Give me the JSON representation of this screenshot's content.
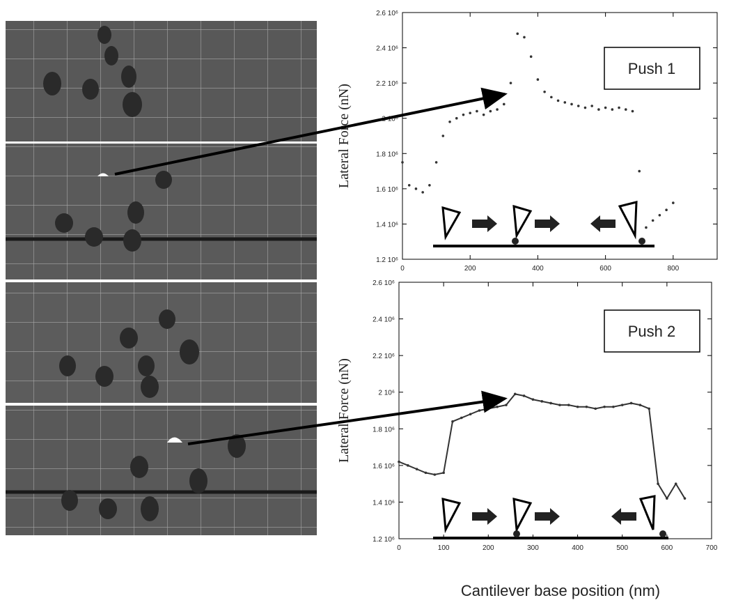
{
  "figure": {
    "xlabel": "Cantilever base position (nm)"
  },
  "chart_data": [
    {
      "type": "scatter",
      "ylabel": "Lateral Force (nN)",
      "annotation": "Push 1",
      "xlim": [
        0,
        930
      ],
      "xticks": [
        0,
        200,
        400,
        600,
        800
      ],
      "ylim": [
        1200000,
        2600000
      ],
      "yticks": [
        {
          "value": 1200000,
          "label": "1.2 10⁶"
        },
        {
          "value": 1400000,
          "label": "1.4 10⁶"
        },
        {
          "value": 1600000,
          "label": "1.6 10⁶"
        },
        {
          "value": 1800000,
          "label": "1.8 10⁶"
        },
        {
          "value": 2000000,
          "label": "2 10⁶"
        },
        {
          "value": 2200000,
          "label": "2.2 10⁶"
        },
        {
          "value": 2400000,
          "label": "2.4 10⁶"
        },
        {
          "value": 2600000,
          "label": "2.6 10⁶"
        }
      ],
      "series": [
        {
          "name": "Push 1",
          "color": "#333333",
          "x": [
            0,
            20,
            40,
            60,
            80,
            100,
            120,
            140,
            160,
            180,
            200,
            220,
            240,
            260,
            280,
            300,
            320,
            340,
            360,
            380,
            400,
            420,
            440,
            460,
            480,
            500,
            520,
            540,
            560,
            580,
            600,
            620,
            640,
            660,
            680,
            700,
            720,
            740,
            760,
            780,
            800
          ],
          "values": [
            1750000,
            1620000,
            1600000,
            1580000,
            1620000,
            1750000,
            1900000,
            1980000,
            2000000,
            2020000,
            2030000,
            2040000,
            2020000,
            2040000,
            2050000,
            2080000,
            2200000,
            2480000,
            2460000,
            2350000,
            2220000,
            2150000,
            2120000,
            2100000,
            2090000,
            2080000,
            2070000,
            2060000,
            2070000,
            2050000,
            2060000,
            2050000,
            2060000,
            2050000,
            2040000,
            1700000,
            1380000,
            1420000,
            1450000,
            1480000,
            1520000
          ]
        }
      ]
    },
    {
      "type": "line",
      "ylabel": "Lateral Force (nN)",
      "annotation": "Push 2",
      "xlim": [
        0,
        700
      ],
      "xticks": [
        0,
        100,
        200,
        300,
        400,
        500,
        600,
        700
      ],
      "ylim": [
        1200000,
        2600000
      ],
      "yticks": [
        {
          "value": 1200000,
          "label": "1.2 10⁶"
        },
        {
          "value": 1400000,
          "label": "1.4 10⁶"
        },
        {
          "value": 1600000,
          "label": "1.6 10⁶"
        },
        {
          "value": 1800000,
          "label": "1.8 10⁶"
        },
        {
          "value": 2000000,
          "label": "2 10⁶"
        },
        {
          "value": 2200000,
          "label": "2.2 10⁶"
        },
        {
          "value": 2400000,
          "label": "2.4 10⁶"
        },
        {
          "value": 2600000,
          "label": "2.6 10⁶"
        }
      ],
      "series": [
        {
          "name": "Push 2",
          "color": "#333333",
          "x": [
            0,
            20,
            40,
            60,
            80,
            100,
            120,
            140,
            160,
            180,
            200,
            220,
            240,
            260,
            280,
            300,
            320,
            340,
            360,
            380,
            400,
            420,
            440,
            460,
            480,
            500,
            520,
            540,
            560,
            580,
            600,
            620,
            640
          ],
          "values": [
            1620000,
            1600000,
            1580000,
            1560000,
            1550000,
            1560000,
            1840000,
            1860000,
            1880000,
            1900000,
            1910000,
            1920000,
            1930000,
            1990000,
            1980000,
            1960000,
            1950000,
            1940000,
            1930000,
            1930000,
            1920000,
            1920000,
            1910000,
            1920000,
            1920000,
            1930000,
            1940000,
            1930000,
            1910000,
            1500000,
            1420000,
            1500000,
            1420000
          ]
        }
      ]
    }
  ]
}
